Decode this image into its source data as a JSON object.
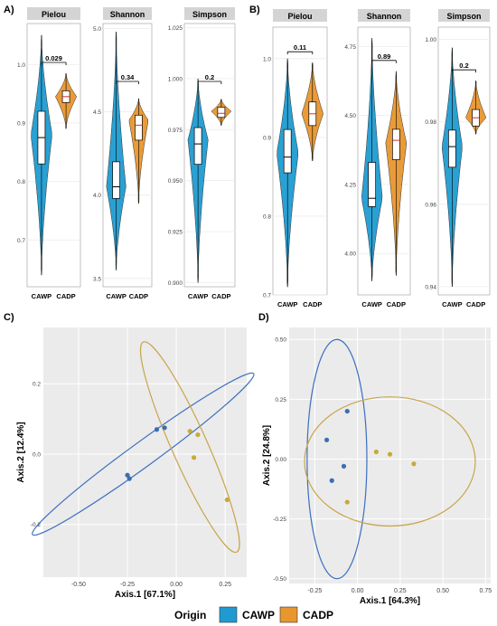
{
  "colors": {
    "cawp": "#1f9bd1",
    "cadp": "#e8962e",
    "cawp_dark": "#3a6fb0",
    "cadp_dark": "#c8a93a",
    "strip": "#d4d4d4",
    "grid": "#ebebeb",
    "ellipse_cawp": "#3b6fbf",
    "ellipse_cadp": "#c9a44a"
  },
  "panel_letters": {
    "a": "A)",
    "b": "B)",
    "c": "C)",
    "d": "D)"
  },
  "legend": {
    "title": "Origin",
    "items": [
      "CAWP",
      "CADP"
    ]
  },
  "chart_data": [
    {
      "type": "violin",
      "panel": "A",
      "facet": "Pielou",
      "categories": [
        "CAWP",
        "CADP"
      ],
      "ylim": [
        0.62,
        1.07
      ],
      "ticks": [
        "0.7",
        "0.8",
        "0.9",
        "1.0"
      ],
      "tick_values": [
        0.7,
        0.8,
        0.9,
        1.0
      ],
      "violins": [
        {
          "group": "CAWP",
          "min": 0.64,
          "max": 1.05,
          "q1": 0.83,
          "median": 0.875,
          "q3": 0.92,
          "mode": 0.88
        },
        {
          "group": "CADP",
          "min": 0.89,
          "max": 0.985,
          "q1": 0.935,
          "median": 0.945,
          "q3": 0.955,
          "mode": 0.945
        }
      ],
      "p_value": "0.029"
    },
    {
      "type": "violin",
      "panel": "A",
      "facet": "Shannon",
      "categories": [
        "CAWP",
        "CADP"
      ],
      "ylim": [
        3.45,
        5.03
      ],
      "ticks": [
        "3.5",
        "4.0",
        "4.5",
        "5.0"
      ],
      "tick_values": [
        3.5,
        4.0,
        4.5,
        5.0
      ],
      "violins": [
        {
          "group": "CAWP",
          "min": 3.55,
          "max": 4.98,
          "q1": 3.98,
          "median": 4.05,
          "q3": 4.2,
          "mode": 4.05
        },
        {
          "group": "CADP",
          "min": 3.95,
          "max": 4.58,
          "q1": 4.33,
          "median": 4.42,
          "q3": 4.48,
          "mode": 4.45
        }
      ],
      "p_value": "0.34"
    },
    {
      "type": "violin",
      "panel": "A",
      "facet": "Simpson",
      "categories": [
        "CAWP",
        "CADP"
      ],
      "ylim": [
        0.898,
        1.027
      ],
      "ticks": [
        "0.900",
        "0.925",
        "0.950",
        "0.975",
        "1.000",
        "1.025"
      ],
      "tick_values": [
        0.9,
        0.925,
        0.95,
        0.975,
        1.0,
        1.025
      ],
      "violins": [
        {
          "group": "CAWP",
          "min": 0.9,
          "max": 1.0,
          "q1": 0.958,
          "median": 0.968,
          "q3": 0.976,
          "mode": 0.97
        },
        {
          "group": "CADP",
          "min": 0.977,
          "max": 0.99,
          "q1": 0.981,
          "median": 0.983,
          "q3": 0.986,
          "mode": 0.984
        }
      ],
      "p_value": "0.2"
    },
    {
      "type": "violin",
      "panel": "B",
      "facet": "Pielou",
      "categories": [
        "CAWP",
        "CADP"
      ],
      "ylim": [
        0.7,
        1.04
      ],
      "ticks": [
        "0.7",
        "0.8",
        "0.9",
        "1.0"
      ],
      "tick_values": [
        0.7,
        0.8,
        0.9,
        1.0
      ],
      "violins": [
        {
          "group": "CAWP",
          "min": 0.71,
          "max": 1.0,
          "q1": 0.855,
          "median": 0.875,
          "q3": 0.91,
          "mode": 0.88
        },
        {
          "group": "CADP",
          "min": 0.87,
          "max": 0.995,
          "q1": 0.915,
          "median": 0.93,
          "q3": 0.945,
          "mode": 0.93
        }
      ],
      "p_value": "0.11"
    },
    {
      "type": "violin",
      "panel": "B",
      "facet": "Shannon",
      "categories": [
        "CAWP",
        "CADP"
      ],
      "ylim": [
        3.85,
        4.82
      ],
      "ticks": [
        "4.00",
        "4.25",
        "4.50",
        "4.75"
      ],
      "tick_values": [
        4.0,
        4.25,
        4.5,
        4.75
      ],
      "violins": [
        {
          "group": "CAWP",
          "min": 3.9,
          "max": 4.78,
          "q1": 4.17,
          "median": 4.2,
          "q3": 4.33,
          "mode": 4.2
        },
        {
          "group": "CADP",
          "min": 3.92,
          "max": 4.66,
          "q1": 4.34,
          "median": 4.41,
          "q3": 4.45,
          "mode": 4.4
        }
      ],
      "p_value": "0.89"
    },
    {
      "type": "violin",
      "panel": "B",
      "facet": "Simpson",
      "categories": [
        "CAWP",
        "CADP"
      ],
      "ylim": [
        0.938,
        1.003
      ],
      "ticks": [
        "0.94",
        "0.96",
        "0.98",
        "1.00"
      ],
      "tick_values": [
        0.94,
        0.96,
        0.98,
        1.0
      ],
      "violins": [
        {
          "group": "CAWP",
          "min": 0.94,
          "max": 0.998,
          "q1": 0.969,
          "median": 0.974,
          "q3": 0.978,
          "mode": 0.974
        },
        {
          "group": "CADP",
          "min": 0.977,
          "max": 0.99,
          "q1": 0.979,
          "median": 0.981,
          "q3": 0.983,
          "mode": 0.981
        }
      ],
      "p_value": "0.2"
    },
    {
      "type": "scatter",
      "panel": "C",
      "xlabel": "Axis.1   [67.1%]",
      "ylabel": "Axis.2   [12.4%]",
      "xlim": [
        -0.68,
        0.36
      ],
      "ylim": [
        -0.35,
        0.36
      ],
      "xticks": [
        "-0.50",
        "-0.25",
        "0.00",
        "0.25"
      ],
      "xtick_values": [
        -0.5,
        -0.25,
        0.0,
        0.25
      ],
      "yticks": [
        "-0.2",
        "0.0",
        "0.2"
      ],
      "ytick_values": [
        -0.2,
        0.0,
        0.2
      ],
      "series": [
        {
          "group": "CAWP",
          "points": [
            [
              -0.25,
              -0.06
            ],
            [
              -0.24,
              -0.07
            ],
            [
              -0.1,
              0.07
            ],
            [
              -0.06,
              0.075
            ]
          ]
        },
        {
          "group": "CADP",
          "points": [
            [
              0.07,
              0.065
            ],
            [
              0.11,
              0.055
            ],
            [
              0.09,
              -0.01
            ],
            [
              0.26,
              -0.13
            ]
          ]
        }
      ],
      "ellipses": [
        {
          "group": "CAWP",
          "center": [
            -0.17,
            0.0
          ],
          "rx": 0.5,
          "ry": 0.045,
          "angle_deg": 36
        },
        {
          "group": "CADP",
          "center": [
            0.07,
            0.02
          ],
          "rx": 0.42,
          "ry": 0.065,
          "angle_deg": -66
        }
      ]
    },
    {
      "type": "scatter",
      "panel": "D",
      "xlabel": "Axis.1   [64.3%]",
      "ylabel": "Axis.2   [24.8%]",
      "xlim": [
        -0.4,
        0.78
      ],
      "ylim": [
        -0.52,
        0.55
      ],
      "xticks": [
        "-0.25",
        "0.00",
        "0.25",
        "0.50",
        "0.75"
      ],
      "xtick_values": [
        -0.25,
        0.0,
        0.25,
        0.5,
        0.75
      ],
      "yticks": [
        "-0.50",
        "-0.25",
        "0.00",
        "0.25",
        "0.50"
      ],
      "ytick_values": [
        -0.5,
        -0.25,
        0.0,
        0.25,
        0.5
      ],
      "series": [
        {
          "group": "CAWP",
          "points": [
            [
              -0.06,
              0.2
            ],
            [
              -0.18,
              0.08
            ],
            [
              -0.08,
              -0.03
            ],
            [
              -0.15,
              -0.09
            ]
          ]
        },
        {
          "group": "CADP",
          "points": [
            [
              0.11,
              0.03
            ],
            [
              0.19,
              0.02
            ],
            [
              0.33,
              -0.02
            ],
            [
              -0.06,
              -0.18
            ]
          ]
        }
      ],
      "ellipses": [
        {
          "group": "CAWP",
          "center": [
            -0.12,
            0.0
          ],
          "rx": 0.175,
          "ry": 0.5,
          "angle_deg": 0
        },
        {
          "group": "CADP",
          "center": [
            0.19,
            -0.01
          ],
          "rx": 0.5,
          "ry": 0.27,
          "angle_deg": 0
        }
      ]
    }
  ]
}
